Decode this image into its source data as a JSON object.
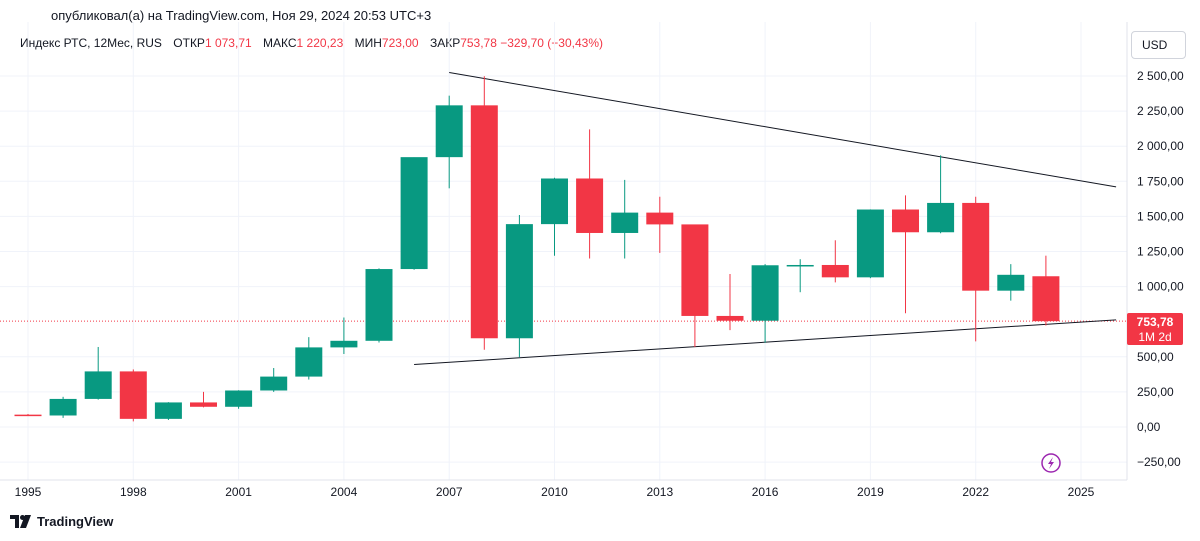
{
  "header": {
    "published": "опубликовал(а) на TradingView.com, Ноя 29, 2024 20:53 UTC+3"
  },
  "legend": {
    "symbol": "Индекс РТС, 12Мес, RUS",
    "open_label": "ОТКР",
    "open_value": "1 073,71",
    "high_label": "МАКС",
    "high_value": "1 220,23",
    "low_label": "МИН",
    "low_value": "723,00",
    "close_label": "ЗАКР",
    "close_value": "753,78",
    "change": "−329,70 (−30,43%)"
  },
  "currency_button": "USD",
  "price_badge": {
    "price": "753,78",
    "countdown": "1M 2d"
  },
  "logo": {
    "text": "TradingView"
  },
  "colors": {
    "up": "#089981",
    "down": "#f23645",
    "grid": "#f0f3fa",
    "trendline": "#131722",
    "badge": "#f23645",
    "flash_icon": "#9c27b0"
  },
  "icons": {
    "flash": "lightning-icon",
    "logo": "tradingview-logo-icon"
  },
  "chart_data": {
    "type": "candlestick",
    "title": "",
    "ylim": [
      -330,
      2620
    ],
    "y_ticks": [
      2500,
      2250,
      2000,
      1750,
      1500,
      1250,
      1000,
      500,
      250,
      0,
      -250
    ],
    "y_tick_labels": [
      "2 500,00",
      "2 250,00",
      "2 000,00",
      "1 750,00",
      "1 500,00",
      "1 250,00",
      "1 000,00",
      "500,00",
      "250,00",
      "0,00",
      "−250,00"
    ],
    "x_ticks": [
      1995,
      1998,
      2001,
      2004,
      2007,
      2010,
      2013,
      2016,
      2019,
      2022,
      2025
    ],
    "current_price": 753.78,
    "candles": [
      {
        "year": 1995,
        "open": 88,
        "high": 93,
        "low": 80,
        "close": 82
      },
      {
        "year": 1996,
        "open": 82,
        "high": 215,
        "low": 65,
        "close": 200
      },
      {
        "year": 1997,
        "open": 200,
        "high": 570,
        "low": 195,
        "close": 396
      },
      {
        "year": 1998,
        "open": 396,
        "high": 410,
        "low": 40,
        "close": 58
      },
      {
        "year": 1999,
        "open": 58,
        "high": 177,
        "low": 50,
        "close": 175
      },
      {
        "year": 2000,
        "open": 175,
        "high": 250,
        "low": 140,
        "close": 144
      },
      {
        "year": 2001,
        "open": 144,
        "high": 262,
        "low": 130,
        "close": 260
      },
      {
        "year": 2002,
        "open": 260,
        "high": 420,
        "low": 250,
        "close": 359
      },
      {
        "year": 2003,
        "open": 359,
        "high": 640,
        "low": 338,
        "close": 567
      },
      {
        "year": 2004,
        "open": 567,
        "high": 780,
        "low": 520,
        "close": 614
      },
      {
        "year": 2005,
        "open": 614,
        "high": 1130,
        "low": 602,
        "close": 1125
      },
      {
        "year": 2006,
        "open": 1125,
        "high": 1920,
        "low": 1120,
        "close": 1922
      },
      {
        "year": 2007,
        "open": 1922,
        "high": 2360,
        "low": 1700,
        "close": 2291
      },
      {
        "year": 2008,
        "open": 2291,
        "high": 2498,
        "low": 550,
        "close": 632
      },
      {
        "year": 2009,
        "open": 632,
        "high": 1510,
        "low": 498,
        "close": 1445
      },
      {
        "year": 2010,
        "open": 1445,
        "high": 1775,
        "low": 1220,
        "close": 1770
      },
      {
        "year": 2011,
        "open": 1770,
        "high": 2120,
        "low": 1200,
        "close": 1382
      },
      {
        "year": 2012,
        "open": 1382,
        "high": 1760,
        "low": 1200,
        "close": 1527
      },
      {
        "year": 2013,
        "open": 1527,
        "high": 1640,
        "low": 1240,
        "close": 1443
      },
      {
        "year": 2014,
        "open": 1443,
        "high": 1440,
        "low": 570,
        "close": 791
      },
      {
        "year": 2015,
        "open": 791,
        "high": 1090,
        "low": 690,
        "close": 757
      },
      {
        "year": 2016,
        "open": 757,
        "high": 1160,
        "low": 600,
        "close": 1152
      },
      {
        "year": 2017,
        "open": 1152,
        "high": 1195,
        "low": 960,
        "close": 1154
      },
      {
        "year": 2018,
        "open": 1154,
        "high": 1330,
        "low": 1030,
        "close": 1066
      },
      {
        "year": 2019,
        "open": 1066,
        "high": 1550,
        "low": 1060,
        "close": 1549
      },
      {
        "year": 2020,
        "open": 1549,
        "high": 1650,
        "low": 810,
        "close": 1387
      },
      {
        "year": 2021,
        "open": 1387,
        "high": 1935,
        "low": 1380,
        "close": 1596
      },
      {
        "year": 2022,
        "open": 1596,
        "high": 1640,
        "low": 610,
        "close": 971
      },
      {
        "year": 2023,
        "open": 971,
        "high": 1160,
        "low": 900,
        "close": 1084
      },
      {
        "year": 2024,
        "open": 1073.71,
        "high": 1220.23,
        "low": 723,
        "close": 753.78
      }
    ],
    "trendlines": [
      {
        "x1": 2007.0,
        "y1": 2525,
        "x2": 2026.0,
        "y2": 1710
      },
      {
        "x1": 2006.0,
        "y1": 445,
        "x2": 2026.0,
        "y2": 763
      }
    ]
  }
}
